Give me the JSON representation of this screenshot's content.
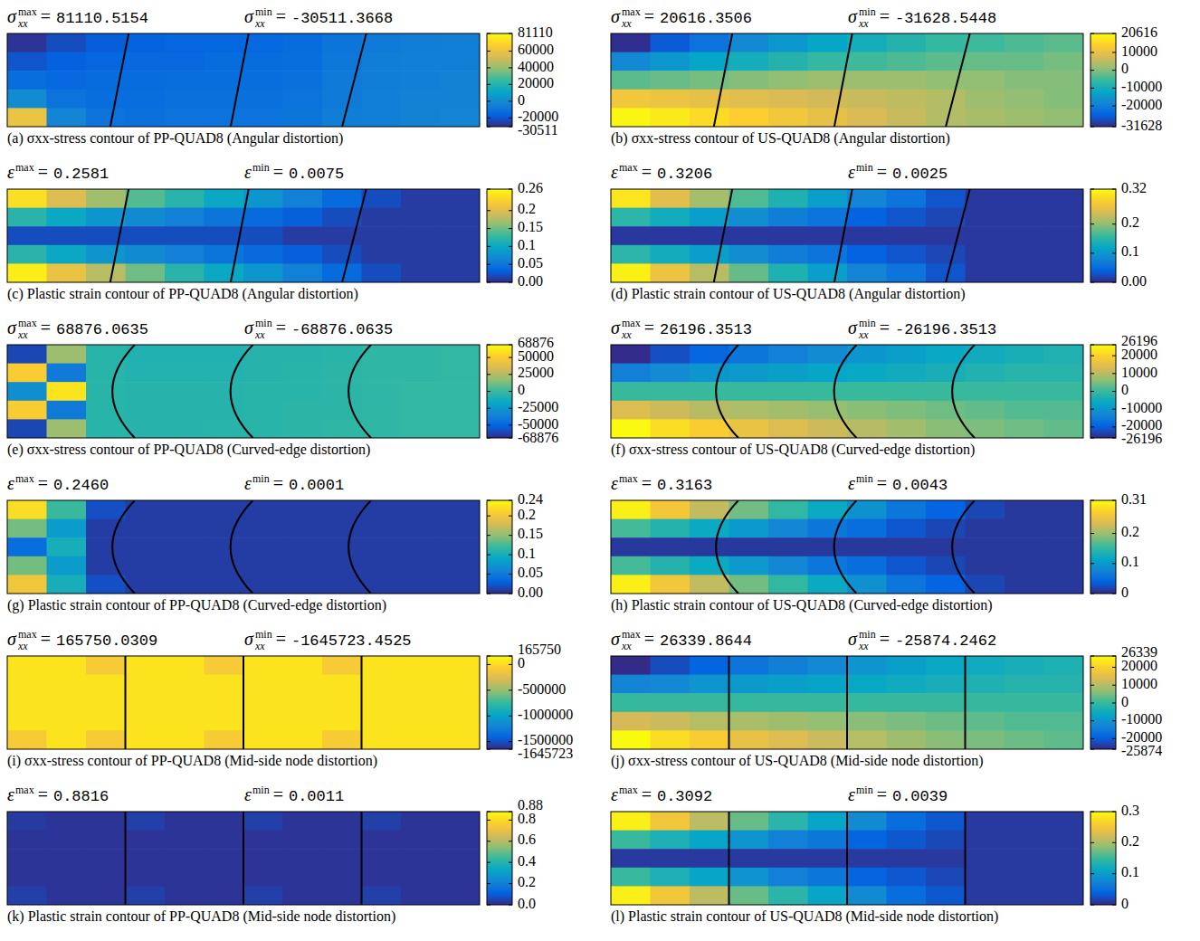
{
  "chart_data": [
    {
      "type": "heatmap",
      "title": "(a) σxx-stress contour of PP-QUAD8 (Angular distortion)",
      "stat_symbol": "σ",
      "stat_sub": "xx",
      "max_sup": "max",
      "min_sup": "min",
      "stat_sep": "=",
      "max": 81110.5154,
      "min": -30511.3668,
      "colorbar": {
        "range": [
          -30511.3668,
          81110.5154
        ],
        "ticks": [
          -30511,
          -20000,
          0,
          20000,
          40000,
          60000,
          81110
        ]
      },
      "cells": [
        [
          -28000,
          -22000,
          -18000,
          -16000,
          -15000,
          -15000,
          -14000,
          -13000,
          -9000,
          -7000,
          -6000,
          -5000
        ],
        [
          -20000,
          -17000,
          -15000,
          -14000,
          -14000,
          -13000,
          -13000,
          -12000,
          -8000,
          -6000,
          -5000,
          -5000
        ],
        [
          -12000,
          -14000,
          -13000,
          -13000,
          -12000,
          -12000,
          -12000,
          -11000,
          -7000,
          -6000,
          -5000,
          -4000
        ],
        [
          0,
          -10000,
          -12000,
          -12000,
          -11000,
          -11000,
          -11000,
          -10000,
          -7000,
          -5000,
          -4000,
          -4000
        ],
        [
          60000,
          -3000,
          -10000,
          -11000,
          -10000,
          -10000,
          -10000,
          -9000,
          -6000,
          -5000,
          -4000,
          -3000
        ]
      ]
    },
    {
      "type": "heatmap",
      "title": "(b) σxx-stress contour of US-QUAD8 (Angular distortion)",
      "stat_symbol": "σ",
      "stat_sub": "xx",
      "max_sup": "max",
      "min_sup": "min",
      "stat_sep": "=",
      "max": 20616.3506,
      "min": -31628.5448,
      "colorbar": {
        "range": [
          -31628.5448,
          20616.3506
        ],
        "ticks": [
          -31628,
          -20000,
          -10000,
          0,
          10000,
          20616
        ]
      },
      "cells": [
        [
          -31000,
          -26000,
          -22000,
          -18000,
          -15000,
          -12000,
          -10000,
          -8000,
          -6000,
          -5000,
          -4000,
          -3000
        ],
        [
          -18000,
          -15000,
          -12000,
          -10000,
          -8000,
          -6000,
          -5000,
          -4000,
          -3000,
          -2000,
          -2000,
          -1000
        ],
        [
          -3000,
          -2000,
          -1000,
          0,
          1000,
          2000,
          2000,
          2000,
          1000,
          1000,
          0,
          0
        ],
        [
          12000,
          11000,
          10000,
          9000,
          8000,
          7000,
          6000,
          5000,
          4000,
          2000,
          1000,
          0
        ],
        [
          20000,
          18000,
          16000,
          14000,
          12000,
          10000,
          8000,
          6000,
          4000,
          3000,
          2000,
          1000
        ]
      ]
    },
    {
      "type": "heatmap",
      "title": "(c) Plastic strain contour of PP-QUAD8  (Angular distortion)",
      "stat_symbol": "ε",
      "max_sup": "max",
      "min_sup": "min",
      "stat_sep": "=",
      "max": 0.2581,
      "min": 0.0075,
      "colorbar": {
        "range": [
          0,
          0.26
        ],
        "ticks": [
          {
            "value": 0,
            "label": "0.00"
          },
          0.05,
          0.1,
          0.15,
          0.2,
          0.26
        ]
      },
      "cells": [
        [
          0.24,
          0.2,
          0.17,
          0.14,
          0.12,
          0.1,
          0.08,
          0.06,
          0.04,
          0.02,
          0.01,
          0.01
        ],
        [
          0.12,
          0.1,
          0.08,
          0.07,
          0.06,
          0.05,
          0.04,
          0.03,
          0.02,
          0.01,
          0.01,
          0.01
        ],
        [
          0.02,
          0.02,
          0.02,
          0.02,
          0.02,
          0.02,
          0.02,
          0.01,
          0.01,
          0.01,
          0.01,
          0.01
        ],
        [
          0.12,
          0.1,
          0.08,
          0.07,
          0.06,
          0.05,
          0.04,
          0.03,
          0.02,
          0.01,
          0.01,
          0.01
        ],
        [
          0.25,
          0.21,
          0.18,
          0.15,
          0.12,
          0.1,
          0.08,
          0.06,
          0.04,
          0.02,
          0.01,
          0.01
        ]
      ]
    },
    {
      "type": "heatmap",
      "title": "(d) Plastic strain contour of US-QUAD8 (Angular distortion)",
      "stat_symbol": "ε",
      "max_sup": "max",
      "min_sup": "min",
      "stat_sep": "=",
      "max": 0.3206,
      "min": 0.0025,
      "colorbar": {
        "range": [
          0,
          0.32
        ],
        "ticks": [
          {
            "value": 0,
            "label": "0.00"
          },
          0.1,
          0.2,
          0.32
        ]
      },
      "cells": [
        [
          0.3,
          0.25,
          0.21,
          0.17,
          0.14,
          0.11,
          0.08,
          0.06,
          0.03,
          0.01,
          0.01,
          0.01
        ],
        [
          0.15,
          0.13,
          0.11,
          0.09,
          0.07,
          0.06,
          0.04,
          0.03,
          0.02,
          0.01,
          0.01,
          0.01
        ],
        [
          0.01,
          0.01,
          0.01,
          0.01,
          0.01,
          0.01,
          0.01,
          0.01,
          0.01,
          0.01,
          0.01,
          0.01
        ],
        [
          0.15,
          0.13,
          0.11,
          0.09,
          0.07,
          0.06,
          0.04,
          0.03,
          0.02,
          0.01,
          0.01,
          0.01
        ],
        [
          0.31,
          0.26,
          0.22,
          0.18,
          0.14,
          0.11,
          0.08,
          0.06,
          0.03,
          0.01,
          0.01,
          0.01
        ]
      ]
    },
    {
      "type": "heatmap",
      "title": "(e) σxx-stress contour of PP-QUAD8 (Curved-edge distortion)",
      "stat_symbol": "σ",
      "stat_sub": "xx",
      "max_sup": "max",
      "min_sup": "min",
      "stat_sep": "=",
      "max": 68876.0635,
      "min": -68876.0635,
      "colorbar": {
        "range": [
          -68876.0635,
          68876.0635
        ],
        "ticks": [
          -68876,
          -50000,
          -25000,
          0,
          25000,
          50000,
          68876
        ]
      },
      "cells": [
        [
          -60000,
          20000,
          -5000,
          -8000,
          -8000,
          -8000,
          -6000,
          -6000,
          -5000,
          -3000,
          -3000,
          -2000
        ],
        [
          50000,
          -40000,
          -5000,
          -7000,
          -7000,
          -7000,
          -6000,
          -5000,
          -4000,
          -3000,
          -3000,
          -2000
        ],
        [
          -30000,
          60000,
          -5000,
          -6000,
          -6000,
          -6000,
          -5000,
          -5000,
          -4000,
          -3000,
          -2000,
          -2000
        ],
        [
          50000,
          -40000,
          -5000,
          -6000,
          -6000,
          -6000,
          -5000,
          -4000,
          -4000,
          -3000,
          -2000,
          -2000
        ],
        [
          -60000,
          20000,
          -5000,
          -6000,
          -6000,
          -5000,
          -5000,
          -4000,
          -3000,
          -3000,
          -2000,
          -2000
        ]
      ]
    },
    {
      "type": "heatmap",
      "title": "(f) σxx-stress contour of US-QUAD8 (Curved-edge distortion)",
      "stat_symbol": "σ",
      "stat_sub": "xx",
      "max_sup": "max",
      "min_sup": "min",
      "stat_sep": "=",
      "max": 26196.3513,
      "min": -26196.3513,
      "colorbar": {
        "range": [
          -26196.3513,
          26196.3513
        ],
        "ticks": [
          -26196,
          -20000,
          -10000,
          0,
          10000,
          20000,
          26196
        ]
      },
      "cells": [
        [
          -26000,
          -22000,
          -19000,
          -16000,
          -14000,
          -12000,
          -10000,
          -8000,
          -6000,
          -5000,
          -4000,
          -3000
        ],
        [
          -14000,
          -12000,
          -10000,
          -9000,
          -8000,
          -7000,
          -6000,
          -5000,
          -4000,
          -3000,
          -2000,
          -2000
        ],
        [
          0,
          0,
          0,
          0,
          0,
          0,
          0,
          0,
          0,
          0,
          0,
          0
        ],
        [
          14000,
          12000,
          10000,
          9000,
          8000,
          7000,
          6000,
          5000,
          4000,
          3000,
          2000,
          2000
        ],
        [
          26000,
          22000,
          19000,
          16000,
          14000,
          12000,
          10000,
          8000,
          6000,
          5000,
          4000,
          3000
        ]
      ]
    },
    {
      "type": "heatmap",
      "title": "(g) Plastic strain contour of PP-QUAD8 (Curved-edge distortion)",
      "stat_symbol": "ε",
      "max_sup": "max",
      "min_sup": "min",
      "stat_sep": "=",
      "max": {
        "value": 0.246,
        "label": "0.2460"
      },
      "min": 0.0001,
      "colorbar": {
        "range": [
          0,
          0.24
        ],
        "ticks": [
          {
            "value": 0,
            "label": "0.00"
          },
          0.05,
          0.1,
          0.15,
          0.2,
          0.24
        ]
      },
      "cells": [
        [
          0.22,
          0.12,
          0.02,
          0.01,
          0.01,
          0.01,
          0.01,
          0.01,
          0.01,
          0.01,
          0.01,
          0.01
        ],
        [
          0.14,
          0.08,
          0.01,
          0.01,
          0.01,
          0.01,
          0.01,
          0.01,
          0.01,
          0.01,
          0.01,
          0.01
        ],
        [
          0.04,
          0.1,
          0.01,
          0.01,
          0.01,
          0.01,
          0.01,
          0.01,
          0.01,
          0.01,
          0.01,
          0.01
        ],
        [
          0.14,
          0.08,
          0.01,
          0.01,
          0.01,
          0.01,
          0.01,
          0.01,
          0.01,
          0.01,
          0.01,
          0.01
        ],
        [
          0.2,
          0.1,
          0.02,
          0.01,
          0.01,
          0.01,
          0.01,
          0.01,
          0.01,
          0.01,
          0.01,
          0.01
        ]
      ]
    },
    {
      "type": "heatmap",
      "title": "(h) Plastic strain contour of US-QUAD8 (Curved-edge distortion)",
      "stat_symbol": "ε",
      "max_sup": "max",
      "min_sup": "min",
      "stat_sep": "=",
      "max": 0.3163,
      "min": 0.0043,
      "colorbar": {
        "range": [
          0,
          0.31
        ],
        "ticks": [
          0,
          0.1,
          0.2,
          0.31
        ]
      },
      "cells": [
        [
          0.3,
          0.26,
          0.22,
          0.18,
          0.15,
          0.12,
          0.09,
          0.06,
          0.04,
          0.02,
          0.01,
          0.01
        ],
        [
          0.16,
          0.14,
          0.12,
          0.1,
          0.08,
          0.06,
          0.05,
          0.03,
          0.02,
          0.01,
          0.01,
          0.01
        ],
        [
          0.01,
          0.01,
          0.01,
          0.01,
          0.01,
          0.01,
          0.01,
          0.01,
          0.01,
          0.01,
          0.01,
          0.01
        ],
        [
          0.16,
          0.14,
          0.12,
          0.1,
          0.08,
          0.06,
          0.05,
          0.03,
          0.02,
          0.01,
          0.01,
          0.01
        ],
        [
          0.3,
          0.26,
          0.22,
          0.18,
          0.15,
          0.12,
          0.09,
          0.06,
          0.04,
          0.02,
          0.01,
          0.01
        ]
      ]
    },
    {
      "type": "heatmap",
      "title": "(i) σxx-stress contour of PP-QUAD8 (Mid-side node distortion)",
      "stat_symbol": "σ",
      "stat_sub": "xx",
      "max_sup": "max",
      "min_sup": "min",
      "stat_sep": "=",
      "max": 165750.0309,
      "min": -1645723.4525,
      "colorbar": {
        "range": [
          -1645723.4525,
          165750.0309
        ],
        "ticks": [
          -1645723,
          -1500000,
          -1000000,
          -500000,
          0,
          165750
        ]
      },
      "cells": [
        [
          50000,
          50000,
          -100000,
          50000,
          50000,
          -100000,
          50000,
          50000,
          -100000,
          50000,
          50000,
          50000
        ],
        [
          50000,
          50000,
          50000,
          50000,
          50000,
          50000,
          50000,
          50000,
          50000,
          50000,
          50000,
          50000
        ],
        [
          50000,
          50000,
          50000,
          50000,
          50000,
          50000,
          50000,
          50000,
          50000,
          50000,
          50000,
          50000
        ],
        [
          50000,
          50000,
          50000,
          50000,
          50000,
          50000,
          50000,
          50000,
          50000,
          50000,
          50000,
          50000
        ],
        [
          -100000,
          50000,
          -100000,
          50000,
          50000,
          -100000,
          50000,
          50000,
          -100000,
          50000,
          50000,
          50000
        ]
      ]
    },
    {
      "type": "heatmap",
      "title": "(j) σxx-stress contour of US-QUAD8 (Mid-side node distortion)",
      "stat_symbol": "σ",
      "stat_sub": "xx",
      "max_sup": "max",
      "min_sup": "min",
      "stat_sep": "=",
      "max": 26339.8644,
      "min": -25874.2462,
      "colorbar": {
        "range": [
          -25874.2462,
          26339.8644
        ],
        "ticks": [
          -25874,
          -20000,
          -10000,
          0,
          10000,
          20000,
          26339
        ]
      },
      "cells": [
        [
          -25800,
          -22000,
          -19000,
          -16000,
          -14000,
          -12000,
          -10000,
          -8000,
          -6000,
          -5000,
          -4000,
          -3000
        ],
        [
          -13000,
          -12000,
          -10000,
          -9000,
          -8000,
          -7000,
          -6000,
          -5000,
          -4000,
          -3000,
          -2000,
          -2000
        ],
        [
          0,
          0,
          0,
          0,
          0,
          0,
          0,
          0,
          0,
          0,
          0,
          0
        ],
        [
          13000,
          12000,
          10000,
          9000,
          8000,
          7000,
          6000,
          5000,
          4000,
          3000,
          2000,
          2000
        ],
        [
          26300,
          22000,
          19000,
          16000,
          14000,
          12000,
          10000,
          8000,
          6000,
          5000,
          4000,
          3000
        ]
      ]
    },
    {
      "type": "heatmap",
      "title": "(k) Plastic strain contour of PP-QUAD8  (Mid-side node distortion)",
      "stat_symbol": "ε",
      "max_sup": "max",
      "min_sup": "min",
      "stat_sep": "=",
      "max": 0.8816,
      "min": 0.0011,
      "colorbar": {
        "range": [
          0,
          0.88
        ],
        "ticks": [
          {
            "value": 0,
            "label": "0.0"
          },
          0.2,
          0.4,
          0.6,
          0.8,
          0.88
        ]
      },
      "cells": [
        [
          0.03,
          0.02,
          0.02,
          0.04,
          0.02,
          0.02,
          0.04,
          0.02,
          0.02,
          0.04,
          0.02,
          0.02
        ],
        [
          0.02,
          0.02,
          0.02,
          0.02,
          0.02,
          0.02,
          0.02,
          0.02,
          0.02,
          0.02,
          0.02,
          0.02
        ],
        [
          0.02,
          0.02,
          0.02,
          0.02,
          0.02,
          0.02,
          0.02,
          0.02,
          0.02,
          0.02,
          0.02,
          0.02
        ],
        [
          0.02,
          0.02,
          0.02,
          0.02,
          0.02,
          0.02,
          0.02,
          0.02,
          0.02,
          0.02,
          0.02,
          0.02
        ],
        [
          0.04,
          0.02,
          0.02,
          0.04,
          0.02,
          0.02,
          0.04,
          0.02,
          0.02,
          0.04,
          0.02,
          0.02
        ]
      ]
    },
    {
      "type": "heatmap",
      "title": "(l) Plastic strain contour of US-QUAD8 (Mid-side node distortion)",
      "stat_symbol": "ε",
      "max_sup": "max",
      "min_sup": "min",
      "stat_sep": "=",
      "max": 0.3092,
      "min": 0.0039,
      "colorbar": {
        "range": [
          0,
          0.3
        ],
        "ticks": [
          0,
          0.1,
          0.2,
          0.3
        ]
      },
      "cells": [
        [
          0.29,
          0.25,
          0.21,
          0.17,
          0.14,
          0.11,
          0.08,
          0.05,
          0.03,
          0.01,
          0.01,
          0.01
        ],
        [
          0.15,
          0.13,
          0.11,
          0.09,
          0.07,
          0.06,
          0.04,
          0.03,
          0.02,
          0.01,
          0.01,
          0.01
        ],
        [
          0.01,
          0.01,
          0.01,
          0.01,
          0.01,
          0.01,
          0.01,
          0.01,
          0.01,
          0.01,
          0.01,
          0.01
        ],
        [
          0.15,
          0.13,
          0.11,
          0.09,
          0.07,
          0.06,
          0.04,
          0.03,
          0.02,
          0.01,
          0.01,
          0.01
        ],
        [
          0.29,
          0.25,
          0.21,
          0.17,
          0.14,
          0.11,
          0.08,
          0.05,
          0.03,
          0.01,
          0.01,
          0.01
        ]
      ]
    }
  ]
}
